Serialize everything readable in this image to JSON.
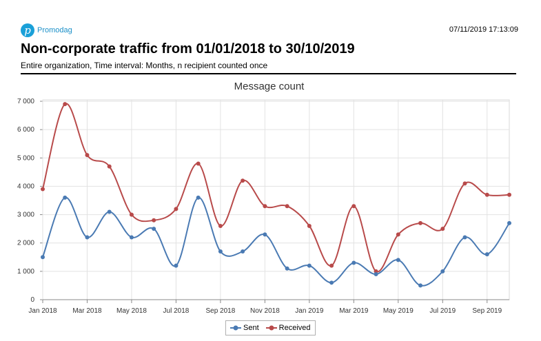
{
  "header": {
    "logo_text": "Promodag",
    "logo_letter": "p",
    "timestamp": "07/11/2019 17:13:09",
    "title": "Non-corporate traffic from 01/01/2018 to 30/10/2019",
    "subtitle": "Entire organization, Time interval: Months, n recipient counted once"
  },
  "chart_data": {
    "type": "line",
    "title": "Message count",
    "x": [
      "2018-01",
      "2018-02",
      "2018-03",
      "2018-04",
      "2018-05",
      "2018-06",
      "2018-07",
      "2018-08",
      "2018-09",
      "2018-10",
      "2018-11",
      "2018-12",
      "2019-01",
      "2019-02",
      "2019-03",
      "2019-04",
      "2019-05",
      "2019-06",
      "2019-07",
      "2019-08",
      "2019-09",
      "2019-10"
    ],
    "x_tick_labels": [
      "Jan 2018",
      "Mar 2018",
      "May 2018",
      "Jul 2018",
      "Sep 2018",
      "Nov 2018",
      "Jan 2019",
      "Mar 2019",
      "May 2019",
      "Jul 2019",
      "Sep 2019"
    ],
    "y_tick_labels": [
      "0",
      "1 000",
      "2 000",
      "3 000",
      "4 000",
      "5 000",
      "6 000",
      "7 000"
    ],
    "ylim": [
      0,
      7000
    ],
    "grid": true,
    "smooth": true,
    "legend_position": "bottom-center",
    "series": [
      {
        "name": "Sent",
        "color": "#4a7ab3",
        "values": [
          1500,
          3600,
          2200,
          3100,
          2200,
          2500,
          1200,
          3600,
          1700,
          1700,
          2300,
          1100,
          1200,
          600,
          1300,
          900,
          1400,
          500,
          1000,
          2200,
          1600,
          2700
        ]
      },
      {
        "name": "Received",
        "color": "#b84a4a",
        "values": [
          3900,
          6900,
          5100,
          4700,
          3000,
          2800,
          3200,
          4800,
          2600,
          4200,
          3300,
          3300,
          2600,
          1200,
          3300,
          1000,
          2300,
          2700,
          2500,
          4100,
          3700,
          3700
        ]
      }
    ]
  }
}
